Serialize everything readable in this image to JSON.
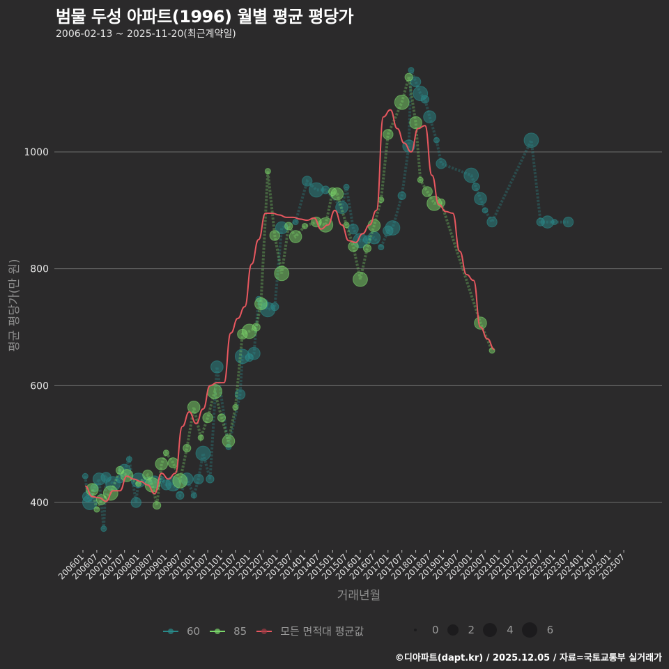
{
  "header": {
    "title": "범물 두성 아파트(1996) 월별 평균 평당가",
    "subtitle": "2006-02-13 ~ 2025-11-20(최근계약일)"
  },
  "axes": {
    "ylabel": "평균 평당가(만 원)",
    "xlabel": "거래년월"
  },
  "legend": {
    "series": [
      {
        "label": "60",
        "color": "#2a8a8a"
      },
      {
        "label": "85",
        "color": "#7bd66a"
      },
      {
        "label": "모든 면적대 평균값",
        "color": "#e8575f"
      }
    ],
    "sizes": [
      {
        "label": "0",
        "r": 2
      },
      {
        "label": "2",
        "r": 8
      },
      {
        "label": "4",
        "r": 10
      },
      {
        "label": "6",
        "r": 12
      }
    ]
  },
  "caption": "©디아파트(dapt.kr) / 2025.12.05 / 자료=국토교통부 실거래가",
  "chart_data": {
    "type": "line",
    "title": "범물 두성 아파트(1996) 월별 평균 평당가",
    "subtitle": "2006-02-13 ~ 2025-11-20(최근계약일)",
    "xlabel": "거래년월",
    "ylabel": "평균 평당가(만 원)",
    "ylim": [
      310,
      1150
    ],
    "yticks": [
      400,
      600,
      800,
      1000
    ],
    "grid": "horizontal",
    "legend_position": "bottom",
    "xticks": [
      "200601",
      "200607",
      "200701",
      "200707",
      "200801",
      "200807",
      "200901",
      "200907",
      "201001",
      "201007",
      "201101",
      "201107",
      "201201",
      "201207",
      "201301",
      "201307",
      "201401",
      "201407",
      "201501",
      "201507",
      "201601",
      "201607",
      "201701",
      "201707",
      "201801",
      "201807",
      "201901",
      "201907",
      "202001",
      "202007",
      "202101",
      "202107",
      "202201",
      "202207",
      "202301",
      "202307",
      "202401",
      "202407",
      "202501",
      "202507"
    ],
    "series": [
      {
        "name": "60",
        "color": "#2a8a8a",
        "points": [
          [
            "200602",
            445
          ],
          [
            "200603",
            410
          ],
          [
            "200604",
            400
          ],
          [
            "200606",
            425
          ],
          [
            "200608",
            440
          ],
          [
            "200610",
            355
          ],
          [
            "200611",
            443
          ],
          [
            "200702",
            432
          ],
          [
            "200705",
            440
          ],
          [
            "200707",
            455
          ],
          [
            "200709",
            474
          ],
          [
            "200712",
            400
          ],
          [
            "200801",
            438
          ],
          [
            "200805",
            436
          ],
          [
            "200808",
            435
          ],
          [
            "200811",
            440
          ],
          [
            "200901",
            430
          ],
          [
            "200904",
            432
          ],
          [
            "200907",
            412
          ],
          [
            "200910",
            440
          ],
          [
            "201001",
            412
          ],
          [
            "201003",
            440
          ],
          [
            "201005",
            484
          ],
          [
            "201008",
            440
          ],
          [
            "201011",
            632
          ],
          [
            "201104",
            495
          ],
          [
            "201109",
            585
          ],
          [
            "201110",
            650
          ],
          [
            "201201",
            648
          ],
          [
            "201203",
            655
          ],
          [
            "201205",
            748
          ],
          [
            "201207",
            740
          ],
          [
            "201209",
            730
          ],
          [
            "201212",
            735
          ],
          [
            "201303",
            870
          ],
          [
            "201309",
            880
          ],
          [
            "201402",
            950
          ],
          [
            "201406",
            935
          ],
          [
            "201410",
            935
          ],
          [
            "201505",
            905
          ],
          [
            "201507",
            940
          ],
          [
            "201510",
            868
          ],
          [
            "201601",
            848
          ],
          [
            "201604",
            850
          ],
          [
            "201607",
            853
          ],
          [
            "201610",
            837
          ],
          [
            "201701",
            865
          ],
          [
            "201703",
            870
          ],
          [
            "201707",
            925
          ],
          [
            "201710",
            1010
          ],
          [
            "201711",
            1140
          ],
          [
            "201801",
            1120
          ],
          [
            "201803",
            1100
          ],
          [
            "201805",
            1090
          ],
          [
            "201807",
            1060
          ],
          [
            "201810",
            1020
          ],
          [
            "201812",
            980
          ],
          [
            "202001",
            960
          ],
          [
            "202003",
            940
          ],
          [
            "202005",
            920
          ],
          [
            "202007",
            900
          ],
          [
            "202010",
            880
          ],
          [
            "202203",
            1020
          ],
          [
            "202207",
            880
          ],
          [
            "202210",
            880
          ],
          [
            "202301",
            880
          ],
          [
            "202307",
            880
          ]
        ]
      },
      {
        "name": "85",
        "color": "#7bd66a",
        "points": [
          [
            "200605",
            422
          ],
          [
            "200607",
            388
          ],
          [
            "200609",
            405
          ],
          [
            "200701",
            416
          ],
          [
            "200705",
            455
          ],
          [
            "200708",
            446
          ],
          [
            "200801",
            432
          ],
          [
            "200805",
            447
          ],
          [
            "200807",
            430
          ],
          [
            "200809",
            395
          ],
          [
            "200811",
            466
          ],
          [
            "200901",
            485
          ],
          [
            "200904",
            468
          ],
          [
            "200907",
            437
          ],
          [
            "200910",
            493
          ],
          [
            "201001",
            563
          ],
          [
            "201004",
            511
          ],
          [
            "201007",
            545
          ],
          [
            "201010",
            590
          ],
          [
            "201101",
            545
          ],
          [
            "201104",
            505
          ],
          [
            "201107",
            563
          ],
          [
            "201110",
            688
          ],
          [
            "201201",
            693
          ],
          [
            "201204",
            700
          ],
          [
            "201206",
            740
          ],
          [
            "201209",
            967
          ],
          [
            "201212",
            857
          ],
          [
            "201303",
            792
          ],
          [
            "201306",
            873
          ],
          [
            "201309",
            855
          ],
          [
            "201401",
            873
          ],
          [
            "201406",
            880
          ],
          [
            "201410",
            875
          ],
          [
            "201501",
            932
          ],
          [
            "201503",
            928
          ],
          [
            "201507",
            875
          ],
          [
            "201510",
            838
          ],
          [
            "201601",
            782
          ],
          [
            "201604",
            835
          ],
          [
            "201607",
            874
          ],
          [
            "201610",
            918
          ],
          [
            "201701",
            1030
          ],
          [
            "201707",
            1085
          ],
          [
            "201710",
            1128
          ],
          [
            "201801",
            1050
          ],
          [
            "201803",
            952
          ],
          [
            "201806",
            932
          ],
          [
            "201809",
            912
          ],
          [
            "201812",
            913
          ],
          [
            "202005",
            707
          ],
          [
            "202010",
            660
          ]
        ]
      },
      {
        "name": "모든 면적대 평균값",
        "color": "#e8575f",
        "points": [
          [
            "200602",
            428
          ],
          [
            "200605",
            410
          ],
          [
            "200608",
            408
          ],
          [
            "200611",
            402
          ],
          [
            "200702",
            420
          ],
          [
            "200705",
            420
          ],
          [
            "200708",
            445
          ],
          [
            "200711",
            440
          ],
          [
            "200802",
            436
          ],
          [
            "200805",
            430
          ],
          [
            "200808",
            415
          ],
          [
            "200811",
            450
          ],
          [
            "200902",
            440
          ],
          [
            "200905",
            450
          ],
          [
            "200908",
            530
          ],
          [
            "200911",
            555
          ],
          [
            "201002",
            535
          ],
          [
            "201005",
            560
          ],
          [
            "201008",
            600
          ],
          [
            "201011",
            605
          ],
          [
            "201102",
            605
          ],
          [
            "201105",
            690
          ],
          [
            "201108",
            715
          ],
          [
            "201111",
            735
          ],
          [
            "201202",
            808
          ],
          [
            "201205",
            850
          ],
          [
            "201208",
            895
          ],
          [
            "201211",
            895
          ],
          [
            "201302",
            892
          ],
          [
            "201305",
            888
          ],
          [
            "201308",
            888
          ],
          [
            "201311",
            885
          ],
          [
            "201402",
            883
          ],
          [
            "201405",
            887
          ],
          [
            "201408",
            868
          ],
          [
            "201411",
            875
          ],
          [
            "201502",
            900
          ],
          [
            "201505",
            875
          ],
          [
            "201508",
            848
          ],
          [
            "201511",
            845
          ],
          [
            "201602",
            860
          ],
          [
            "201605",
            875
          ],
          [
            "201608",
            900
          ],
          [
            "201611",
            1060
          ],
          [
            "201702",
            1072
          ],
          [
            "201705",
            1040
          ],
          [
            "201708",
            1015
          ],
          [
            "201711",
            1000
          ],
          [
            "201802",
            1040
          ],
          [
            "201805",
            1045
          ],
          [
            "201808",
            960
          ],
          [
            "201811",
            910
          ],
          [
            "201902",
            898
          ],
          [
            "201905",
            895
          ],
          [
            "201908",
            830
          ],
          [
            "201911",
            790
          ],
          [
            "202002",
            780
          ],
          [
            "202005",
            700
          ],
          [
            "202008",
            680
          ],
          [
            "202011",
            662
          ]
        ]
      }
    ]
  }
}
